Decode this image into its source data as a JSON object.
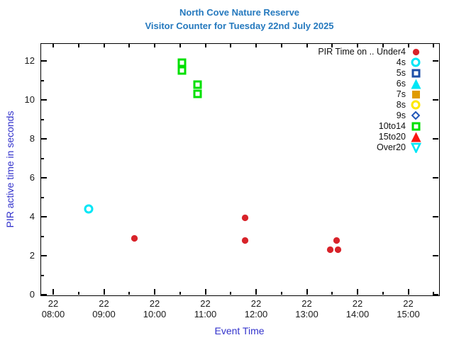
{
  "title": {
    "line1": "North Cove Nature Reserve",
    "line2": "Visitor Counter for Tuesday 22nd July 2025",
    "color": "#2579be"
  },
  "chart_data": {
    "type": "scatter",
    "title": "North Cove Nature Reserve",
    "subtitle": "Visitor Counter for Tuesday 22nd July 2025",
    "xlabel": "Event Time",
    "ylabel": "PIR active time in seconds",
    "axis_label_color": "#3333cc",
    "tick_label_color": "#1a1a1a",
    "grid": false,
    "x_axis": {
      "type": "time",
      "day_label": "22",
      "major_ticks": [
        "08:00",
        "09:00",
        "10:00",
        "11:00",
        "12:00",
        "13:00",
        "14:00",
        "15:00"
      ],
      "minor_interval_minutes": 30,
      "range": [
        "07:45",
        "15:36"
      ]
    },
    "y_axis": {
      "major_ticks": [
        0,
        2,
        4,
        6,
        8,
        10,
        12
      ],
      "minor_interval": 1,
      "range": [
        0,
        12.9
      ]
    },
    "legend": {
      "position": "top-right-inside",
      "entries": [
        {
          "label": "PIR Time on .. Under4",
          "name": "Under4",
          "marker": "circle-filled",
          "color": "#d8232a"
        },
        {
          "label": "4s",
          "name": "4s",
          "marker": "circle-open",
          "color": "#00e6f6"
        },
        {
          "label": "5s",
          "name": "5s",
          "marker": "square-open",
          "color": "#1d4fa8"
        },
        {
          "label": "6s",
          "name": "6s",
          "marker": "triangle-up-filled",
          "color": "#00e6f6"
        },
        {
          "label": "7s",
          "name": "7s",
          "marker": "square-filled",
          "color": "#e09b00"
        },
        {
          "label": "8s",
          "name": "8s",
          "marker": "circle-open",
          "color": "#ffe800"
        },
        {
          "label": "9s",
          "name": "9s",
          "marker": "diamond-open",
          "color": "#2257b8"
        },
        {
          "label": "10to14",
          "name": "10to14",
          "marker": "square-open",
          "color": "#00e000"
        },
        {
          "label": "15to20",
          "name": "15to20",
          "marker": "triangle-up-filled",
          "color": "#fa1610"
        },
        {
          "label": "Over20",
          "name": "Over20",
          "marker": "triangle-down-open",
          "color": "#00e6f6"
        }
      ]
    },
    "series": [
      {
        "name": "Under4",
        "marker": "circle-filled",
        "color": "#d8232a",
        "points": [
          {
            "time": "09:36",
            "seconds": 2.9
          },
          {
            "time": "11:47",
            "seconds": 3.95
          },
          {
            "time": "11:47",
            "seconds": 2.8
          },
          {
            "time": "13:35",
            "seconds": 2.8
          },
          {
            "time": "13:28",
            "seconds": 2.3
          },
          {
            "time": "13:37",
            "seconds": 2.3
          }
        ]
      },
      {
        "name": "4s",
        "marker": "circle-open",
        "color": "#00e6f6",
        "points": [
          {
            "time": "08:42",
            "seconds": 4.4
          }
        ]
      },
      {
        "name": "10to14",
        "marker": "square-open",
        "color": "#00e000",
        "points": [
          {
            "time": "10:32",
            "seconds": 11.9
          },
          {
            "time": "10:32",
            "seconds": 11.5
          },
          {
            "time": "10:51",
            "seconds": 10.8
          },
          {
            "time": "10:51",
            "seconds": 10.3
          }
        ]
      }
    ]
  }
}
